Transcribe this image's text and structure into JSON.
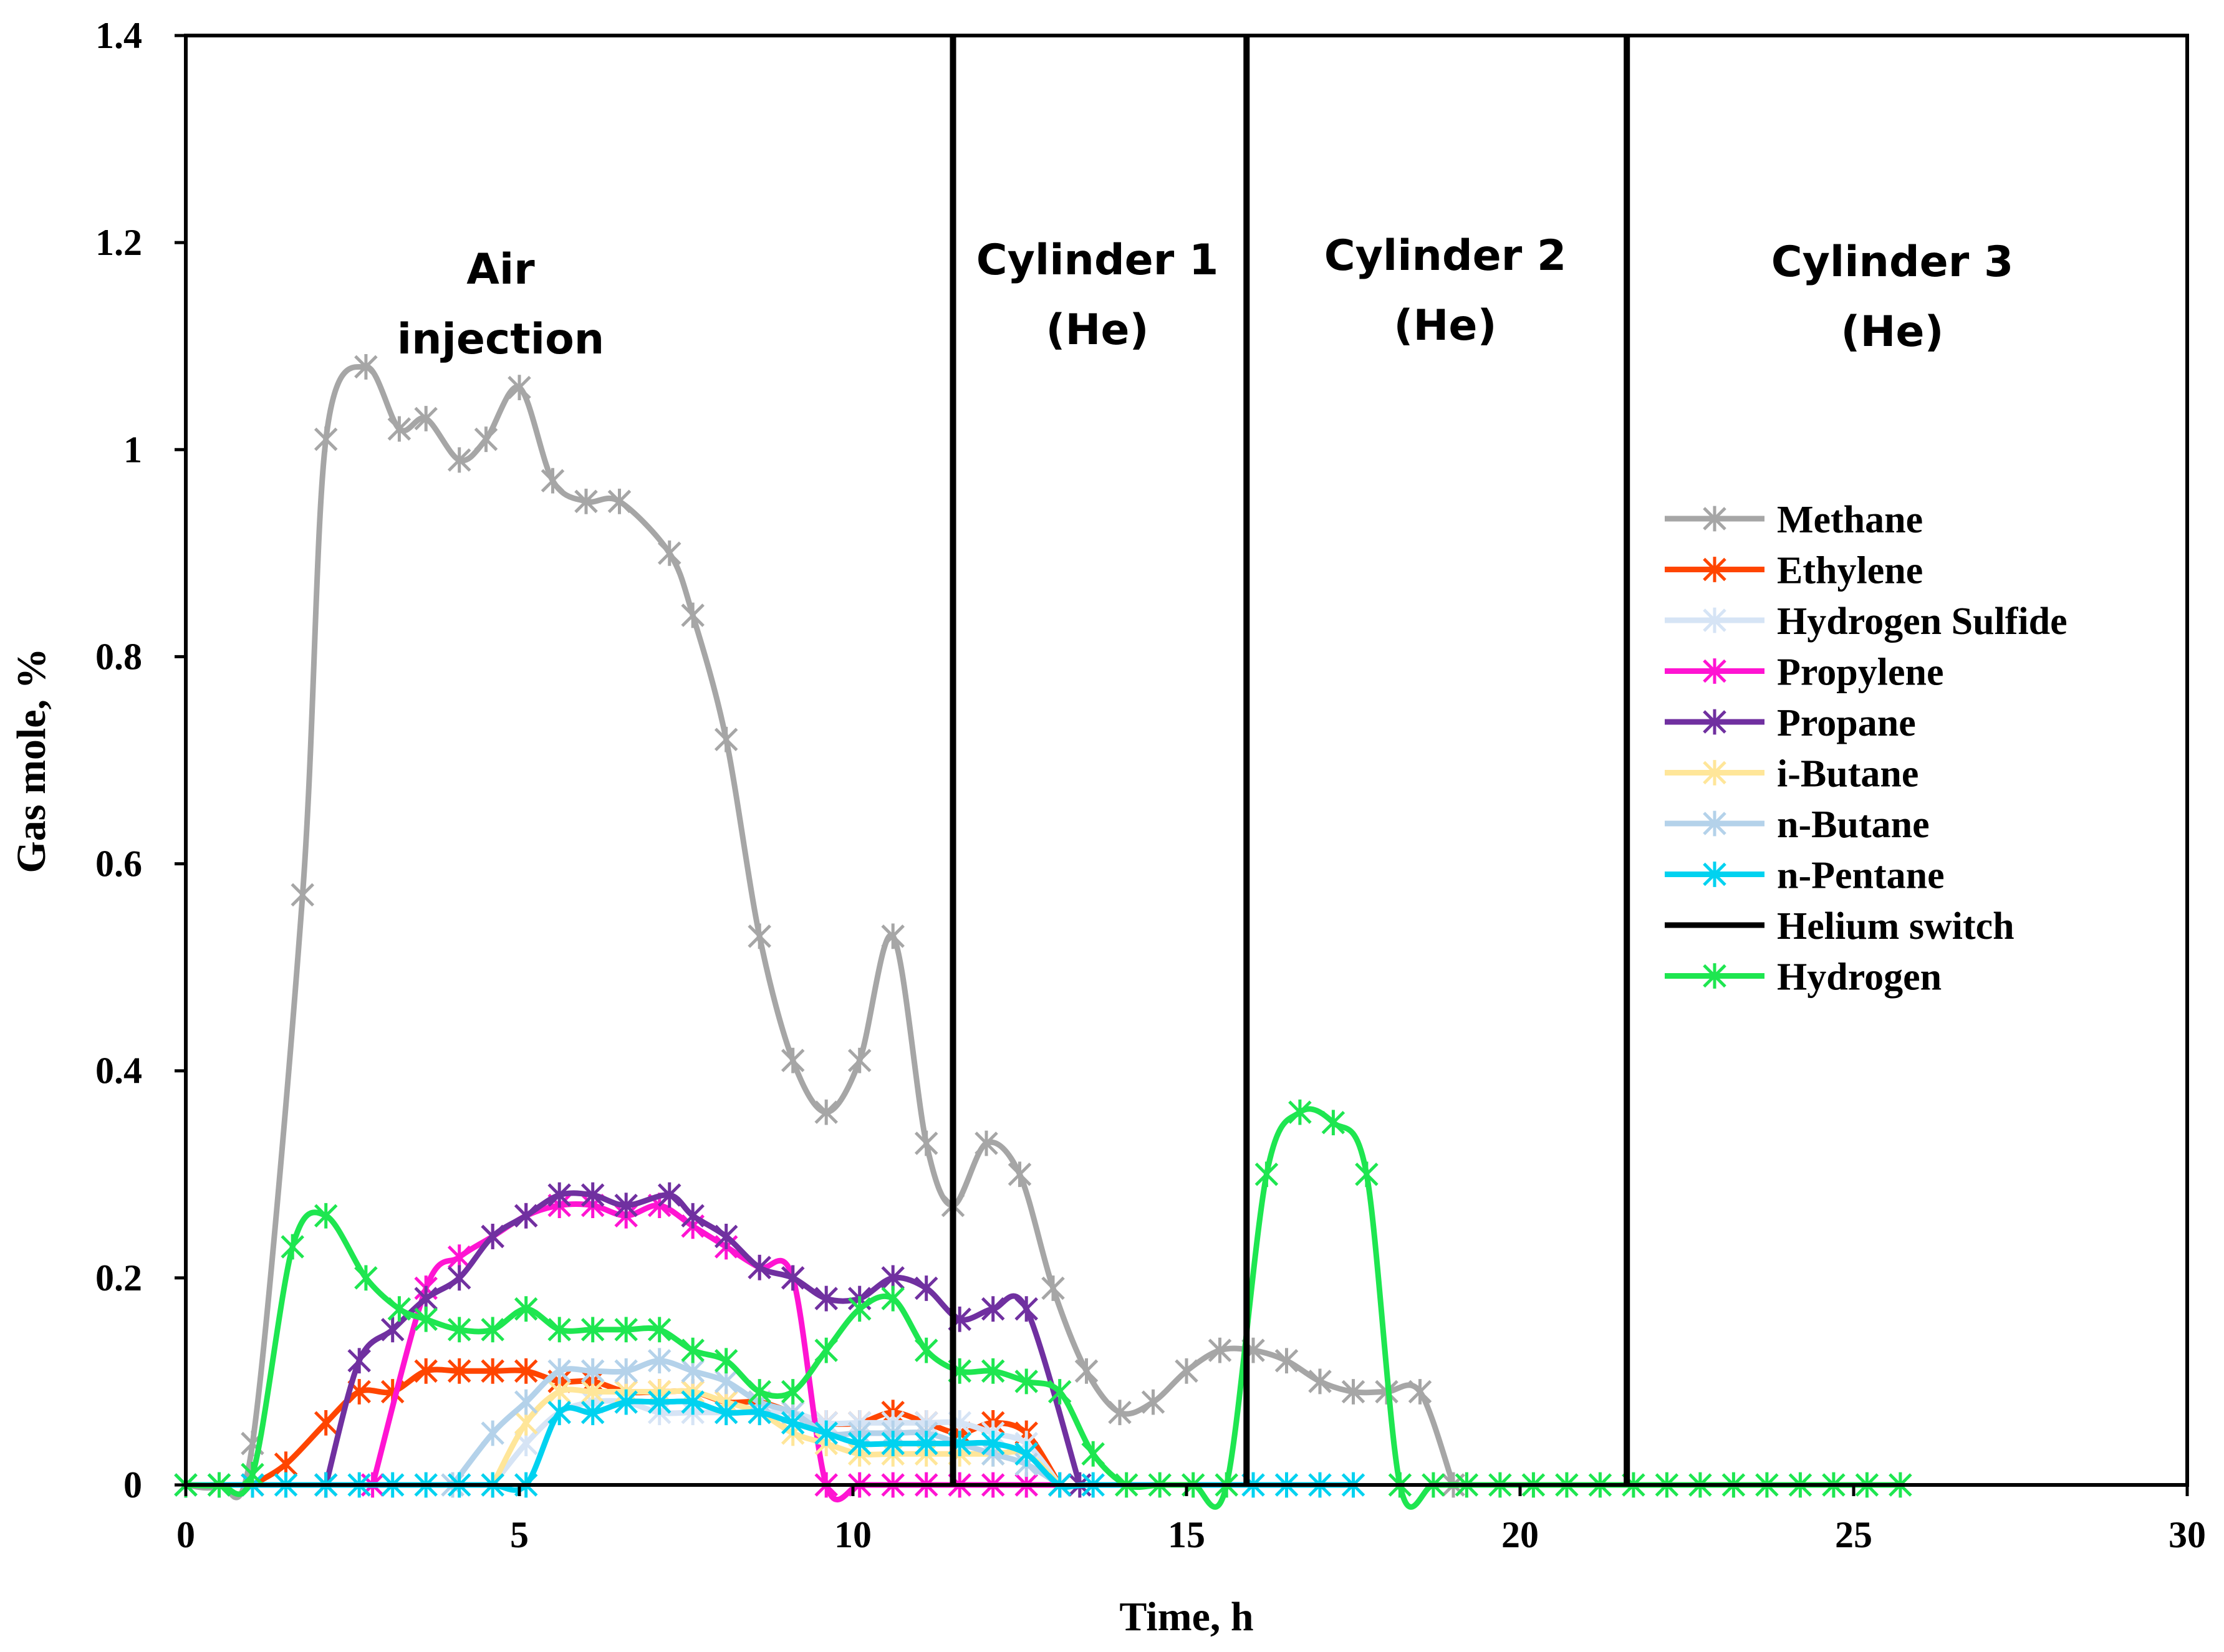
{
  "chart_data": {
    "type": "line",
    "xlabel": "Time, h",
    "ylabel": "Gas mole, %",
    "xlim": [
      0,
      30
    ],
    "ylim": [
      0,
      1.4
    ],
    "xticks": [
      "0",
      "5",
      "10",
      "15",
      "20",
      "25",
      "30"
    ],
    "yticks": [
      "0",
      "0.2",
      "0.4",
      "0.6",
      "0.8",
      "1",
      "1.2",
      "1.4"
    ],
    "annotations": [
      {
        "id": "air",
        "lines": [
          "Air",
          "injection"
        ]
      },
      {
        "id": "cyl1",
        "lines": [
          "Cylinder 1",
          "(He)"
        ]
      },
      {
        "id": "cyl2",
        "lines": [
          "Cylinder 2",
          "(He)"
        ]
      },
      {
        "id": "cyl3",
        "lines": [
          "Cylinder 3",
          "(He)"
        ]
      }
    ],
    "helium_switch": {
      "name": "Helium switch",
      "color": "#000000",
      "x": [
        11.5,
        15.9,
        21.6
      ]
    },
    "series": [
      {
        "name": "Methane",
        "color": "#A6A6A6",
        "x": [
          0,
          0.5,
          1.0,
          1.75,
          2.1,
          2.7,
          3.2,
          3.6,
          4.1,
          4.5,
          5.0,
          5.5,
          6.0,
          6.5,
          7.25,
          7.6,
          8.1,
          8.6,
          9.1,
          9.6,
          10.1,
          10.6,
          11.1,
          11.5,
          12.0,
          12.5,
          13.0,
          13.5,
          14.0,
          14.5,
          15.0,
          15.5,
          16.0,
          16.5,
          17.0,
          17.5,
          18.0,
          18.5,
          19.0
        ],
        "values": [
          0,
          0,
          0.04,
          0.57,
          1.01,
          1.08,
          1.02,
          1.03,
          0.99,
          1.01,
          1.06,
          0.97,
          0.95,
          0.95,
          0.9,
          0.84,
          0.72,
          0.53,
          0.41,
          0.36,
          0.41,
          0.53,
          0.33,
          0.27,
          0.33,
          0.3,
          0.19,
          0.11,
          0.07,
          0.08,
          0.11,
          0.13,
          0.13,
          0.12,
          0.1,
          0.09,
          0.09,
          0.09,
          0
        ]
      },
      {
        "name": "Ethylene",
        "color": "#FF4500",
        "x": [
          1.0,
          1.5,
          2.1,
          2.6,
          3.1,
          3.6,
          4.1,
          4.6,
          5.1,
          5.6,
          6.1,
          6.6,
          7.1,
          7.6,
          8.1,
          8.6,
          9.1,
          9.6,
          10.1,
          10.6,
          11.1,
          11.6,
          12.1,
          12.6,
          13.1
        ],
        "values": [
          0,
          0.02,
          0.06,
          0.09,
          0.09,
          0.11,
          0.11,
          0.11,
          0.11,
          0.1,
          0.1,
          0.09,
          0.09,
          0.09,
          0.08,
          0.08,
          0.07,
          0.06,
          0.06,
          0.07,
          0.06,
          0.05,
          0.06,
          0.05,
          0
        ]
      },
      {
        "name": "Hydrogen Sulfide",
        "color": "#D6E4F5",
        "x": [
          4.6,
          5.1,
          5.6,
          6.1,
          6.6,
          7.1,
          7.6,
          8.1,
          8.6,
          9.1,
          9.6,
          10.1,
          10.6,
          11.1,
          11.6,
          12.1,
          12.6,
          13.1
        ],
        "values": [
          0,
          0.04,
          0.07,
          0.08,
          0.08,
          0.07,
          0.07,
          0.07,
          0.07,
          0.07,
          0.06,
          0.06,
          0.06,
          0.06,
          0.06,
          0.05,
          0.04,
          0
        ]
      },
      {
        "name": "Propylene",
        "color": "#FF14D2",
        "x": [
          2.8,
          3.6,
          4.1,
          4.6,
          5.1,
          5.6,
          6.1,
          6.6,
          7.1,
          7.6,
          8.1,
          8.6,
          9.1,
          9.6,
          10.1,
          10.6,
          11.1,
          11.6,
          12.1,
          12.6,
          13.1
        ],
        "values": [
          0,
          0.19,
          0.22,
          0.24,
          0.26,
          0.27,
          0.27,
          0.26,
          0.27,
          0.25,
          0.23,
          0.21,
          0.2,
          0,
          0,
          0,
          0,
          0,
          0,
          0,
          0
        ]
      },
      {
        "name": "Propane",
        "color": "#7030A0",
        "x": [
          2.1,
          2.6,
          3.1,
          3.6,
          4.1,
          4.6,
          5.1,
          5.6,
          6.1,
          6.6,
          7.25,
          7.6,
          8.1,
          8.6,
          9.1,
          9.6,
          10.1,
          10.6,
          11.1,
          11.6,
          12.1,
          12.6,
          13.4
        ],
        "values": [
          0,
          0.12,
          0.15,
          0.18,
          0.2,
          0.24,
          0.26,
          0.28,
          0.28,
          0.27,
          0.28,
          0.26,
          0.24,
          0.21,
          0.2,
          0.18,
          0.18,
          0.2,
          0.19,
          0.16,
          0.17,
          0.17,
          0
        ]
      },
      {
        "name": "i-Butane",
        "color": "#FFE699",
        "x": [
          4.6,
          5.1,
          5.6,
          6.1,
          6.6,
          7.1,
          7.6,
          8.1,
          8.6,
          9.1,
          9.6,
          10.1,
          10.6,
          11.1,
          11.6,
          12.1,
          12.6,
          13.1
        ],
        "values": [
          0,
          0.06,
          0.09,
          0.09,
          0.09,
          0.09,
          0.09,
          0.08,
          0.07,
          0.05,
          0.04,
          0.03,
          0.03,
          0.03,
          0.03,
          0.03,
          0.03,
          0
        ]
      },
      {
        "name": "n-Butane",
        "color": "#B4D2EA",
        "x": [
          4.0,
          4.6,
          5.1,
          5.6,
          6.1,
          6.6,
          7.1,
          7.6,
          8.1,
          8.6,
          9.1,
          9.6,
          10.1,
          10.6,
          11.1,
          11.6,
          12.1,
          12.6,
          13.1
        ],
        "values": [
          0,
          0.05,
          0.08,
          0.11,
          0.11,
          0.11,
          0.12,
          0.11,
          0.1,
          0.08,
          0.07,
          0.05,
          0.05,
          0.05,
          0.05,
          0.04,
          0.03,
          0.02,
          0
        ]
      },
      {
        "name": "n-Pentane",
        "color": "#00D2F0",
        "x": [
          0,
          0.5,
          1.0,
          1.5,
          2.1,
          2.6,
          3.1,
          3.6,
          4.1,
          4.6,
          5.1,
          5.6,
          6.1,
          6.6,
          7.1,
          7.6,
          8.1,
          8.6,
          9.1,
          9.6,
          10.1,
          10.6,
          11.1,
          11.6,
          12.1,
          12.6,
          13.1,
          13.6,
          16.0,
          16.5,
          17.0,
          17.5
        ],
        "values": [
          0,
          0,
          0,
          0,
          0,
          0,
          0,
          0,
          0,
          0,
          0,
          0.07,
          0.07,
          0.08,
          0.08,
          0.08,
          0.07,
          0.07,
          0.06,
          0.05,
          0.04,
          0.04,
          0.04,
          0.04,
          0.04,
          0.03,
          0,
          0,
          0,
          0,
          0,
          0
        ]
      },
      {
        "name": "Hydrogen",
        "color": "#1EE650",
        "x": [
          0,
          0.5,
          1.0,
          1.6,
          2.1,
          2.7,
          3.2,
          3.6,
          4.1,
          4.6,
          5.1,
          5.6,
          6.1,
          6.6,
          7.1,
          7.6,
          8.1,
          8.6,
          9.1,
          9.6,
          10.1,
          10.6,
          11.1,
          11.6,
          12.1,
          12.6,
          13.1,
          13.6,
          14.1,
          14.6,
          15.1,
          15.6,
          16.2,
          16.7,
          17.2,
          17.7,
          18.2,
          18.7,
          19.2,
          19.7,
          20.2,
          20.7,
          21.2,
          21.7,
          22.2,
          22.7,
          23.2,
          23.7,
          24.2,
          24.7,
          25.2,
          25.7
        ],
        "values": [
          0,
          0,
          0.01,
          0.23,
          0.26,
          0.2,
          0.17,
          0.16,
          0.15,
          0.15,
          0.17,
          0.15,
          0.15,
          0.15,
          0.15,
          0.13,
          0.12,
          0.09,
          0.09,
          0.13,
          0.17,
          0.18,
          0.13,
          0.11,
          0.11,
          0.1,
          0.09,
          0.03,
          0,
          0,
          0,
          0,
          0.3,
          0.36,
          0.35,
          0.3,
          0,
          0,
          0,
          0,
          0,
          0,
          0,
          0,
          0,
          0,
          0,
          0,
          0,
          0,
          0,
          0
        ]
      }
    ]
  }
}
